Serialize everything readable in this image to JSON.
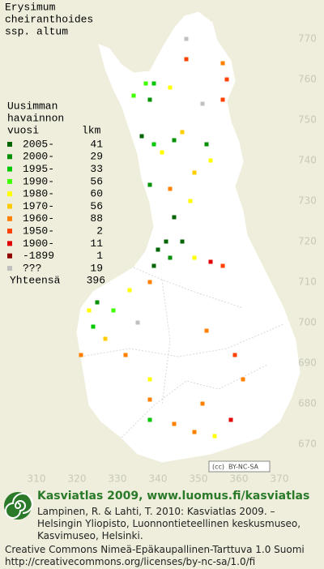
{
  "title": [
    "Erysimum",
    "cheiranthoides",
    "ssp. altum"
  ],
  "legend": {
    "heading": [
      "Uusimman",
      "havainnon"
    ],
    "col_period": "vuosi",
    "col_count": "lkm",
    "rows": [
      {
        "label": "2005-",
        "count": "41",
        "color": "#006400"
      },
      {
        "label": "2000-",
        "count": "29",
        "color": "#009000"
      },
      {
        "label": "1995-",
        "count": "33",
        "color": "#00c800"
      },
      {
        "label": "1990-",
        "count": "56",
        "color": "#40ff00"
      },
      {
        "label": "1980-",
        "count": "60",
        "color": "#ffff00"
      },
      {
        "label": "1970-",
        "count": "56",
        "color": "#ffcc00"
      },
      {
        "label": "1960-",
        "count": "88",
        "color": "#ff8000"
      },
      {
        "label": "1950-",
        "count": "2",
        "color": "#ff4000"
      },
      {
        "label": "1900-",
        "count": "11",
        "color": "#e00000"
      },
      {
        "label": "-1899",
        "count": "1",
        "color": "#900000"
      },
      {
        "label": "???",
        "count": "19",
        "color": "#c0c0c0"
      }
    ],
    "total_label": "Yhteensä",
    "total": "396"
  },
  "y_axis": [
    "770",
    "760",
    "750",
    "740",
    "730",
    "720",
    "710",
    "700",
    "690",
    "680",
    "670"
  ],
  "x_axis": [
    "310",
    "320",
    "330",
    "340",
    "350",
    "360",
    "370"
  ],
  "squares": [
    [
      337,
      759,
      3
    ],
    [
      339,
      759,
      2
    ],
    [
      343,
      758,
      4
    ],
    [
      347,
      770,
      10
    ],
    [
      356,
      764,
      6
    ],
    [
      357,
      760,
      7
    ],
    [
      334,
      756,
      3
    ],
    [
      338,
      755,
      1
    ],
    [
      336,
      746,
      0
    ],
    [
      339,
      744,
      2
    ],
    [
      341,
      742,
      4
    ],
    [
      344,
      745,
      1
    ],
    [
      346,
      747,
      5
    ],
    [
      352,
      744,
      1
    ],
    [
      353,
      740,
      4
    ],
    [
      349,
      737,
      5
    ],
    [
      338,
      734,
      1
    ],
    [
      343,
      733,
      6
    ],
    [
      348,
      730,
      4
    ],
    [
      344,
      726,
      0
    ],
    [
      342,
      720,
      0
    ],
    [
      340,
      718,
      0
    ],
    [
      343,
      716,
      1
    ],
    [
      346,
      720,
      0
    ],
    [
      339,
      714,
      0
    ],
    [
      349,
      716,
      4
    ],
    [
      353,
      715,
      8
    ],
    [
      356,
      714,
      7
    ],
    [
      338,
      710,
      6
    ],
    [
      333,
      708,
      4
    ],
    [
      329,
      703,
      3
    ],
    [
      323,
      703,
      4
    ],
    [
      324,
      699,
      2
    ],
    [
      321,
      692,
      6
    ],
    [
      327,
      696,
      5
    ],
    [
      332,
      692,
      6
    ],
    [
      335,
      700,
      10
    ],
    [
      352,
      698,
      6
    ],
    [
      359,
      692,
      7
    ],
    [
      338,
      686,
      4
    ],
    [
      338,
      681,
      6
    ],
    [
      338,
      676,
      2
    ],
    [
      344,
      675,
      6
    ],
    [
      349,
      673,
      6
    ],
    [
      354,
      672,
      4
    ],
    [
      358,
      676,
      8
    ],
    [
      351,
      680,
      6
    ],
    [
      361,
      686,
      6
    ],
    [
      325,
      705,
      1
    ],
    [
      347,
      765,
      7
    ],
    [
      351,
      754,
      10
    ],
    [
      356,
      755,
      7
    ]
  ],
  "license_badge": "BY-NC-SA",
  "footer": {
    "brand": "Kasviatlas 2009, www.luomus.fi/kasviatlas",
    "citation": [
      "Lampinen, R. & Lahti, T. 2010: Kasviatlas 2009. –",
      "Helsingin Yliopisto, Luonnontieteellinen keskusmuseo,",
      "Kasvimuseo, Helsinki."
    ],
    "license": [
      "Creative Commons Nimeä-Epäkaupallinen-Tarttuva 1.0 Suomi",
      "http://creativecommons.org/licenses/by-nc-sa/1.0/fi"
    ]
  }
}
